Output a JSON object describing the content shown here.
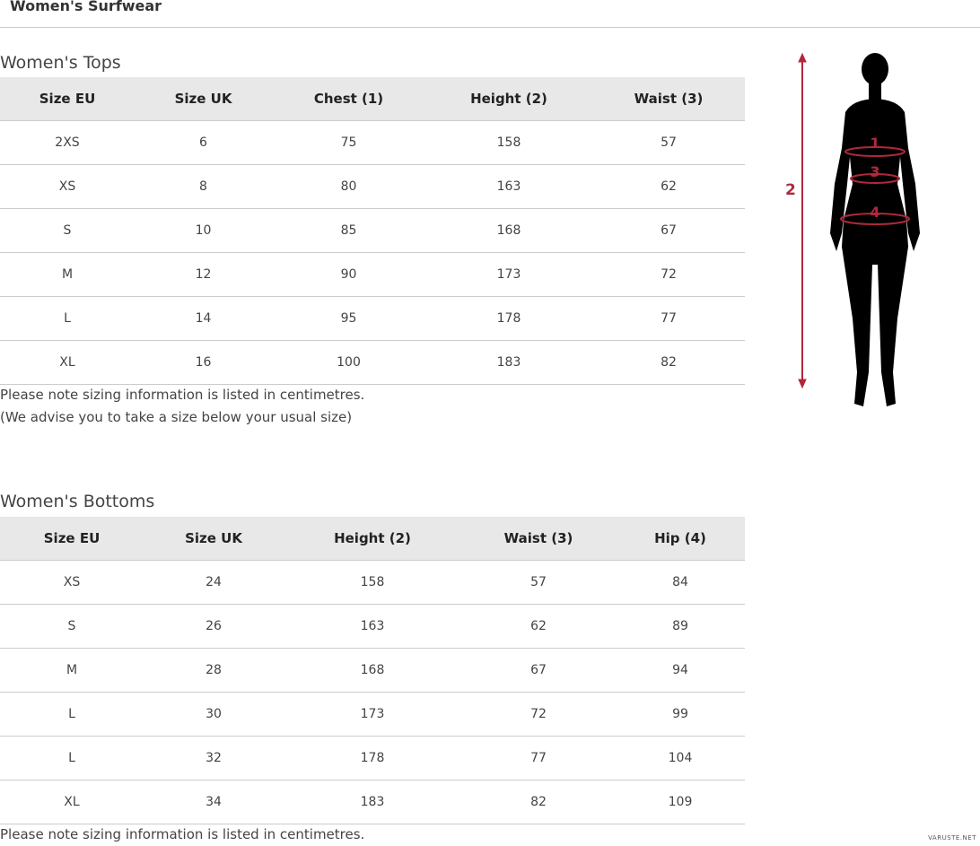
{
  "page_title": "Women's Surfwear",
  "tops": {
    "title": "Women's Tops",
    "headers": [
      "Size EU",
      "Size UK",
      "Chest (1)",
      "Height (2)",
      "Waist (3)"
    ],
    "rows": [
      [
        "2XS",
        "6",
        "75",
        "158",
        "57"
      ],
      [
        "XS",
        "8",
        "80",
        "163",
        "62"
      ],
      [
        "S",
        "10",
        "85",
        "168",
        "67"
      ],
      [
        "M",
        "12",
        "90",
        "173",
        "72"
      ],
      [
        "L",
        "14",
        "95",
        "178",
        "77"
      ],
      [
        "XL",
        "16",
        "100",
        "183",
        "82"
      ]
    ],
    "note1": "Please note sizing information is listed in centimetres.",
    "note2": "(We advise you to take a size below your usual size)"
  },
  "bottoms": {
    "title": "Women's Bottoms",
    "headers": [
      "Size EU",
      "Size UK",
      "Height (2)",
      "Waist (3)",
      "Hip (4)"
    ],
    "rows": [
      [
        "XS",
        "24",
        "158",
        "57",
        "84"
      ],
      [
        "S",
        "26",
        "163",
        "62",
        "89"
      ],
      [
        "M",
        "28",
        "168",
        "67",
        "94"
      ],
      [
        "L",
        "30",
        "173",
        "72",
        "99"
      ],
      [
        "L",
        "32",
        "178",
        "77",
        "104"
      ],
      [
        "XL",
        "34",
        "183",
        "82",
        "109"
      ]
    ],
    "note1": "Please note sizing information is listed in centimetres."
  },
  "figure": {
    "labels": [
      "1",
      "2",
      "3",
      "4"
    ],
    "accent": "#b0283c"
  },
  "watermark": "VARUSTE.NET"
}
